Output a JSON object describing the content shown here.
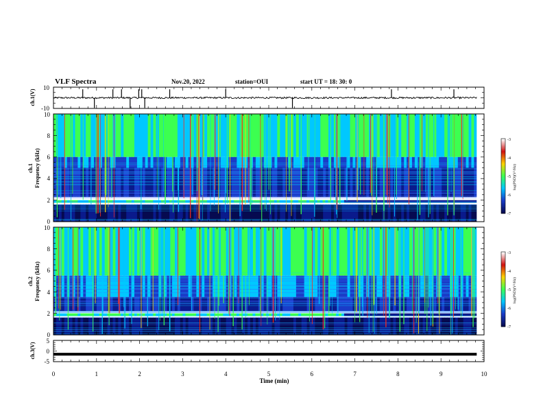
{
  "header": {
    "title": "VLF Spectra",
    "date": "Nov.20, 2022",
    "station": "station=OUI",
    "start_ut": "start  UT =   18: 30: 0"
  },
  "colors": {
    "spectrogram_low": "#0a1a8c",
    "spectrogram_mid": "#00c8ff",
    "spectrogram_high": "#3cff50",
    "spectrogram_peak": "#ff2a1a",
    "trace": "#000000"
  },
  "chart_data": [
    {
      "type": "line",
      "name": "ch1-waveform",
      "ylabel": "ch.1(V)",
      "ylim": [
        -10,
        10
      ],
      "yticks": [
        "10",
        "-10"
      ],
      "x_range_min": [
        0,
        9.83
      ],
      "baseline": 0,
      "spikes_min": [
        0.68,
        0.95,
        1.38,
        1.58,
        1.78,
        1.98,
        2.05,
        2.12,
        2.7,
        4.0,
        5.55,
        7.85,
        9.3
      ]
    },
    {
      "type": "heatmap",
      "name": "ch1-spectrogram",
      "ylabel": "ch.1",
      "ylabel2": "Frequency (kHz)",
      "ylim": [
        0,
        10
      ],
      "yticks": [
        "0",
        "2",
        "4",
        "6",
        "8",
        "10"
      ],
      "x_range_min": [
        0,
        9.83
      ],
      "colorbar": {
        "label": "log(PSD)(V²/Hz)",
        "range": [
          -7,
          -3
        ],
        "ticks": [
          "-3",
          "-4",
          "-5",
          "-6",
          "-7"
        ]
      },
      "bands_khz": [
        {
          "from": 6.0,
          "to": 10.0,
          "level": "high"
        },
        {
          "from": 5.0,
          "to": 6.0,
          "level": "mid-low"
        },
        {
          "from": 2.3,
          "to": 5.0,
          "level": "low"
        },
        {
          "from": 1.75,
          "to": 2.0,
          "level": "line",
          "until_min": 6.75
        },
        {
          "from": 0.0,
          "to": 1.6,
          "level": "very-low"
        }
      ]
    },
    {
      "type": "heatmap",
      "name": "ch2-spectrogram",
      "ylabel": "ch.2",
      "ylabel2": "Frequency (kHz)",
      "ylim": [
        0,
        10
      ],
      "yticks": [
        "0",
        "2",
        "4",
        "6",
        "8",
        "10"
      ],
      "x_range_min": [
        0,
        9.83
      ],
      "colorbar": {
        "label": "log(PSD)(V²/Hz)",
        "range": [
          -7,
          -3
        ],
        "ticks": [
          "-3",
          "-4",
          "-5",
          "-6",
          "-7"
        ]
      },
      "bands_khz": [
        {
          "from": 5.5,
          "to": 10.0,
          "level": "high"
        },
        {
          "from": 3.5,
          "to": 5.5,
          "level": "mid-low"
        },
        {
          "from": 2.2,
          "to": 3.5,
          "level": "low"
        },
        {
          "from": 1.75,
          "to": 2.0,
          "level": "line",
          "until_min": 6.75
        },
        {
          "from": 0.0,
          "to": 1.6,
          "level": "very-low"
        }
      ]
    },
    {
      "type": "line",
      "name": "ch3-waveform",
      "ylabel": "ch.3(V)",
      "ylim": [
        -5,
        5
      ],
      "yticks": [
        "5",
        "0",
        "-5"
      ],
      "x_range_min": [
        0,
        9.83
      ],
      "constant_value": -1.5,
      "xlabel": "Time  (min)",
      "xticks": [
        "0",
        "1",
        "2",
        "3",
        "4",
        "5",
        "6",
        "7",
        "8",
        "9",
        "10"
      ],
      "xlim": [
        0,
        10
      ]
    }
  ]
}
